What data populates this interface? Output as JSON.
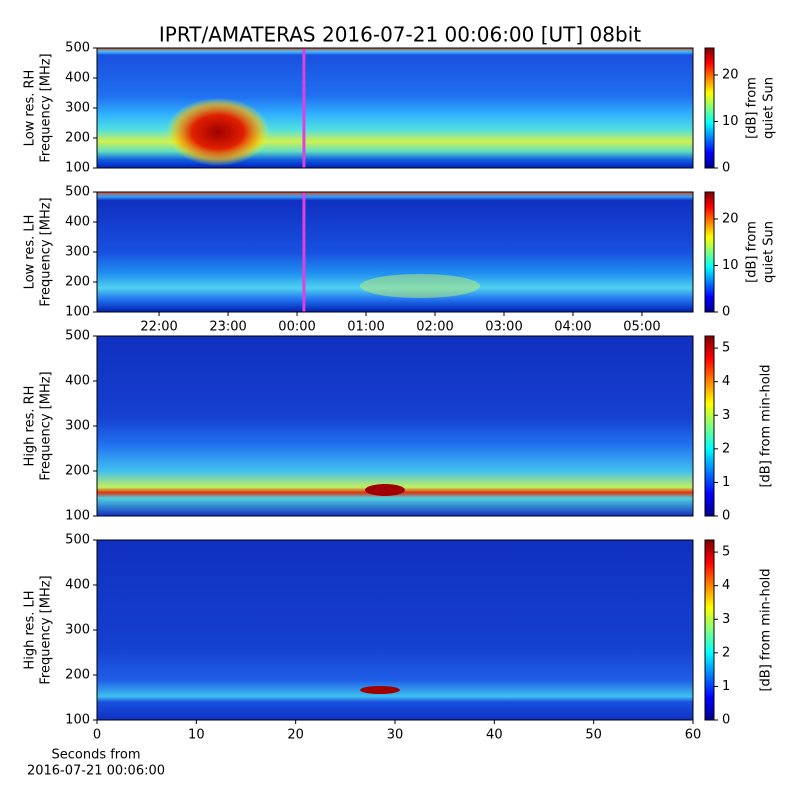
{
  "title": "IPRT/AMATERAS 2016-07-21 00:06:00 [UT]   08bit",
  "chart_data": [
    {
      "type": "heatmap",
      "ylabel": [
        "Low res. RH",
        "Frequency [MHz]"
      ],
      "xlim": [
        21.1,
        29.74
      ],
      "ylim": [
        100,
        500
      ],
      "yticks": [
        100,
        200,
        300,
        400,
        500
      ],
      "marker_x": 24.1,
      "marker_color": "#e040e0",
      "colorbar_label": [
        "[dB] from",
        "quiet Sun"
      ],
      "clim": [
        0,
        25.8
      ],
      "cticks": [
        0,
        10,
        20
      ]
    },
    {
      "type": "heatmap",
      "ylabel": [
        "Low res. LH",
        "Frequency [MHz]"
      ],
      "xlim": [
        21.1,
        29.74
      ],
      "ylim": [
        100,
        500
      ],
      "yticks": [
        100,
        200,
        300,
        400,
        500
      ],
      "xticks": [
        {
          "value": 22,
          "label": "22:00"
        },
        {
          "value": 23,
          "label": "23:00"
        },
        {
          "value": 24,
          "label": "00:00"
        },
        {
          "value": 25,
          "label": "01:00"
        },
        {
          "value": 26,
          "label": "02:00"
        },
        {
          "value": 27,
          "label": "03:00"
        },
        {
          "value": 28,
          "label": "04:00"
        },
        {
          "value": 29,
          "label": "05:00"
        }
      ],
      "marker_x": 24.1,
      "marker_color": "#e040e0",
      "colorbar_label": [
        "[dB] from",
        "quiet Sun"
      ],
      "clim": [
        0,
        25.8
      ],
      "cticks": [
        0,
        10,
        20
      ]
    },
    {
      "type": "heatmap",
      "ylabel": [
        "High res. RH",
        "Frequency [MHz]"
      ],
      "xlim": [
        0,
        60
      ],
      "ylim": [
        100,
        500
      ],
      "yticks": [
        100,
        200,
        300,
        400,
        500
      ],
      "colorbar_label": [
        "[dB] from min-hold"
      ],
      "clim": [
        0,
        5.36
      ],
      "cticks": [
        0,
        1,
        2,
        3,
        4,
        5
      ]
    },
    {
      "type": "heatmap",
      "ylabel": [
        "High res. LH",
        "Frequency [MHz]"
      ],
      "xlim": [
        0,
        60
      ],
      "ylim": [
        100,
        500
      ],
      "yticks": [
        100,
        200,
        300,
        400,
        500
      ],
      "xticks": [
        0,
        10,
        20,
        30,
        40,
        50,
        60
      ],
      "xlabel": [
        "Seconds from",
        "2016-07-21 00:06:00"
      ],
      "colorbar_label": [
        "[dB] from min-hold"
      ],
      "clim": [
        0,
        5.36
      ],
      "cticks": [
        0,
        1,
        2,
        3,
        4,
        5
      ]
    }
  ]
}
